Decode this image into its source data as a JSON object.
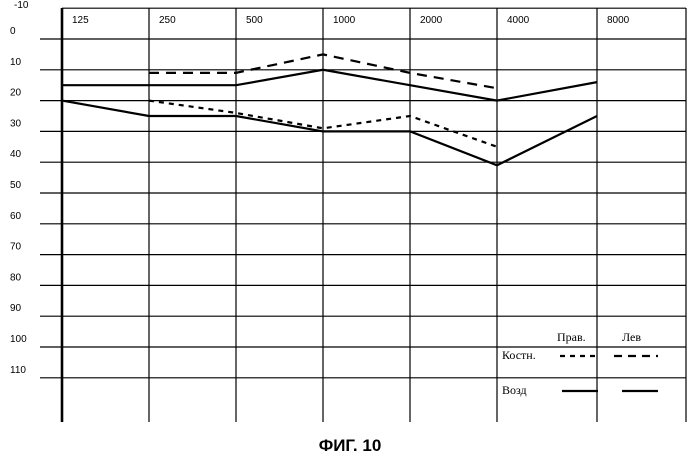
{
  "caption": "ФИГ. 10",
  "chart_data": {
    "type": "line",
    "title": "",
    "xlabel": "",
    "ylabel": "",
    "x_tick_labels": [
      "125",
      "250",
      "500",
      "1000",
      "2000",
      "4000",
      "8000"
    ],
    "y_tick_labels": [
      "-10",
      "0",
      "10",
      "20",
      "30",
      "40",
      "50",
      "60",
      "70",
      "80",
      "90",
      "100",
      "110"
    ],
    "ylim": [
      -10,
      110
    ],
    "y_inverted": true,
    "grid": true,
    "legend": {
      "placement": "bottom-right",
      "columns": [
        "Прав.",
        "Лев"
      ],
      "rows": [
        "Костн.",
        "Возд"
      ]
    },
    "series": [
      {
        "ear": "Лев",
        "kind": "Костн.",
        "style": "dashed",
        "x": [
          "250",
          "500",
          "1000",
          "2000",
          "4000"
        ],
        "y": [
          11,
          11,
          5,
          11,
          16
        ]
      },
      {
        "ear": "Лев",
        "kind": "Возд",
        "style": "solid",
        "x": [
          "125",
          "250",
          "500",
          "1000",
          "2000",
          "4000",
          "8000"
        ],
        "y": [
          15,
          15,
          15,
          10,
          15,
          20,
          14
        ]
      },
      {
        "ear": "Прав.",
        "kind": "Костн.",
        "style": "dotted",
        "x": [
          "250",
          "500",
          "1000",
          "2000",
          "4000"
        ],
        "y": [
          20,
          24,
          29,
          25,
          35
        ]
      },
      {
        "ear": "Прав.",
        "kind": "Возд",
        "style": "solid",
        "x": [
          "125",
          "250",
          "500",
          "1000",
          "2000",
          "4000",
          "8000"
        ],
        "y": [
          20,
          25,
          25,
          30,
          30,
          41,
          25
        ]
      }
    ]
  }
}
